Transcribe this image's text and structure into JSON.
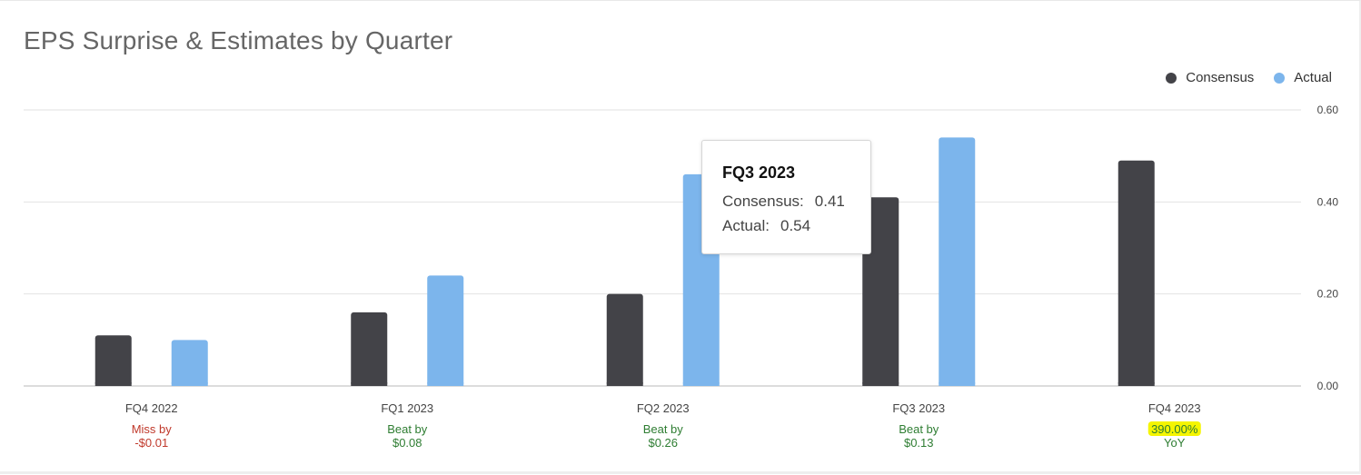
{
  "chart_data": {
    "type": "bar",
    "title": "EPS Surprise & Estimates by Quarter",
    "categories": [
      "FQ4 2022",
      "FQ1 2023",
      "FQ2 2023",
      "FQ3 2023",
      "FQ4 2023"
    ],
    "series": [
      {
        "name": "Consensus",
        "color": "#434348",
        "values": [
          0.11,
          0.16,
          0.2,
          0.41,
          0.49
        ]
      },
      {
        "name": "Actual",
        "color": "#7cb5ec",
        "values": [
          0.1,
          0.24,
          0.46,
          0.54,
          null
        ]
      }
    ],
    "ylim": [
      0,
      0.6
    ],
    "yticks": [
      "0.00",
      "0.20",
      "0.40",
      "0.60"
    ],
    "ytick_values": [
      0,
      0.2,
      0.4,
      0.6
    ],
    "grid": true,
    "legend_position": "top-right",
    "y_axis_side": "right",
    "surprise_labels": [
      {
        "line1": "Miss by",
        "line2": "-$0.01",
        "color": "#c0392b"
      },
      {
        "line1": "Beat by",
        "line2": "$0.08",
        "color": "#2e7d32"
      },
      {
        "line1": "Beat by",
        "line2": "$0.26",
        "color": "#2e7d32"
      },
      {
        "line1": "Beat by",
        "line2": "$0.13",
        "color": "#2e7d32"
      },
      {
        "line1": "390.00%",
        "line2": "YoY",
        "color": "#2e7d32",
        "highlight": "#f5f500"
      }
    ],
    "tooltip": {
      "title": "FQ3 2023",
      "rows": [
        {
          "label": "Consensus:",
          "value": "0.41"
        },
        {
          "label": "Actual:",
          "value": "0.54"
        }
      ]
    }
  }
}
